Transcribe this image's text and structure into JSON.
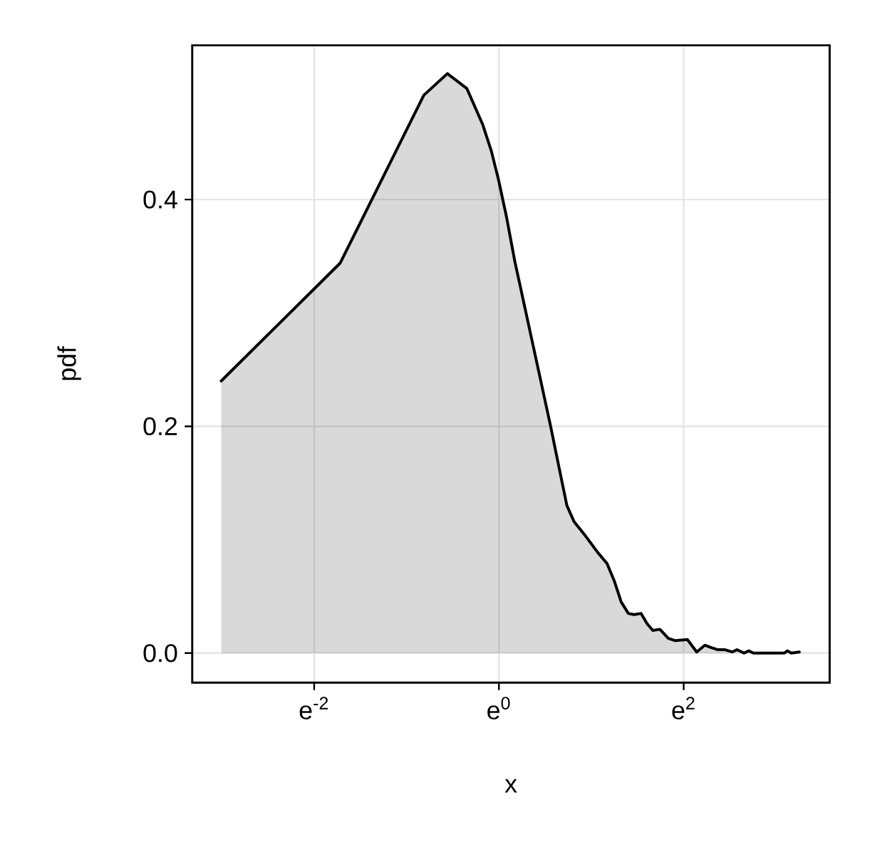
{
  "chart_data": {
    "type": "area",
    "xlabel": "x",
    "ylabel": "pdf",
    "x": [
      -3.006,
      -1.718,
      -0.813,
      -0.558,
      -0.348,
      -0.175,
      -0.083,
      -0.006,
      0.081,
      0.173,
      0.224,
      0.557,
      0.66,
      0.736,
      0.813,
      0.94,
      1.067,
      1.17,
      1.247,
      1.324,
      1.401,
      1.462,
      1.538,
      1.604,
      1.666,
      1.742,
      1.834,
      1.911,
      2.04,
      2.141,
      2.229,
      2.294,
      2.371,
      2.448,
      2.525,
      2.577,
      2.653,
      2.704,
      2.755,
      3.087,
      3.123,
      3.164,
      3.252
    ],
    "series": [
      {
        "color": "#000000",
        "values": [
          0.24,
          0.344,
          0.492,
          0.511,
          0.498,
          0.466,
          0.443,
          0.418,
          0.385,
          0.345,
          0.326,
          0.201,
          0.16,
          0.13,
          0.116,
          0.103,
          0.089,
          0.079,
          0.064,
          0.045,
          0.035,
          0.034,
          0.035,
          0.026,
          0.02,
          0.021,
          0.013,
          0.011,
          0.012,
          0.001,
          0.007,
          0.005,
          0.003,
          0.003,
          0.001,
          0.003,
          0,
          0.002,
          0,
          0,
          0.002,
          0,
          0.001
        ]
      }
    ],
    "xlim": [
      -3.32,
      3.58
    ],
    "ylim": [
      -0.026,
      0.536
    ],
    "xticks": [
      {
        "value": -2,
        "label": "e$^{-2}$"
      },
      {
        "value": 0,
        "label": "e$^{0}$"
      },
      {
        "value": 2,
        "label": "e$^{2}$"
      }
    ],
    "yticks": [
      {
        "value": 0,
        "label": "0.0"
      },
      0.2,
      0.4
    ],
    "grid": true
  }
}
